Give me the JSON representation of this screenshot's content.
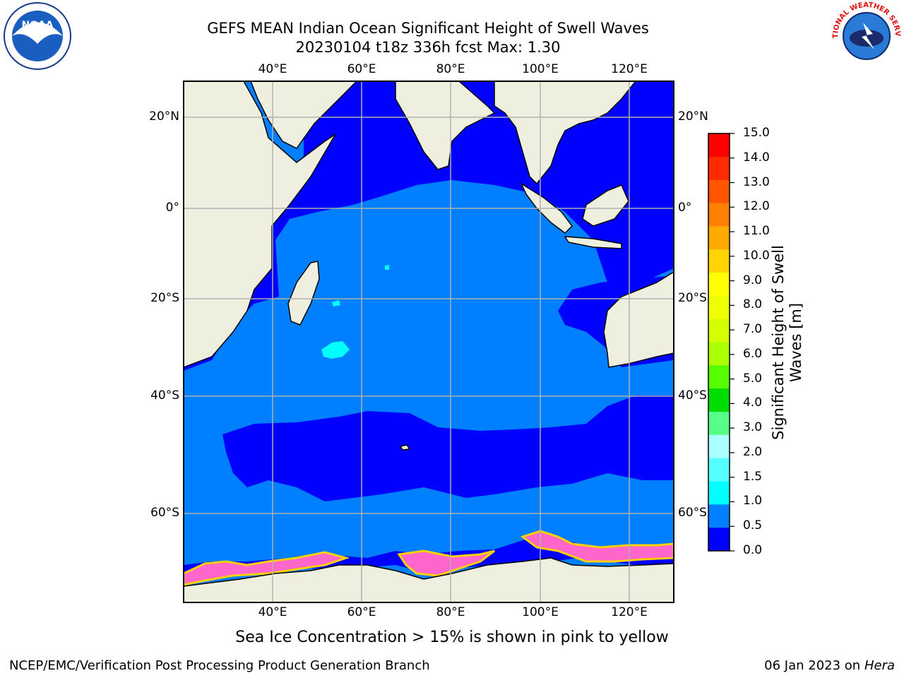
{
  "title": {
    "line1": "GEFS MEAN Indian Ocean Significant Height of Swell Waves",
    "line2": "20230104 t18z 336h fcst   Max: 1.30"
  },
  "map": {
    "lon_labels": [
      "40°E",
      "60°E",
      "80°E",
      "100°E",
      "120°E"
    ],
    "lat_labels": [
      "20°N",
      "0°",
      "20°S",
      "40°S",
      "60°S"
    ],
    "colors": {
      "land": "#efefdf",
      "swell_0_0p5": "#0000ff",
      "swell_0p5_1": "#0080ff",
      "swell_1_1p5": "#00ffff",
      "sea_ice": "#ff66cc",
      "sea_ice_edge": "#ffd000",
      "grid": "#b0b0b0"
    }
  },
  "colorbar": {
    "label_line1": "Significant Height of Swell",
    "label_line2": "Waves [m]",
    "ticks": [
      "15.0",
      "14.0",
      "13.0",
      "12.0",
      "11.0",
      "10.0",
      "9.0",
      "8.0",
      "7.0",
      "6.0",
      "5.0",
      "4.0",
      "3.0",
      "2.0",
      "1.5",
      "1.0",
      "0.5",
      "0.0"
    ],
    "colors": [
      "#ff0000",
      "#ff2a00",
      "#ff5500",
      "#ff8000",
      "#ffaa00",
      "#ffd400",
      "#ffff00",
      "#eeff00",
      "#d4ff00",
      "#aaff00",
      "#55ff00",
      "#00dd00",
      "#55ff88",
      "#aaffff",
      "#55ffff",
      "#00ffff",
      "#0080ff",
      "#0000ff"
    ]
  },
  "note": "Sea Ice Concentration > 15% is shown in pink to yellow",
  "footer": {
    "left": "NCEP/EMC/Verification Post Processing Product Generation Branch",
    "right_date": "06 Jan 2023 on ",
    "right_machine": "Hera"
  },
  "logos": {
    "noaa_text": "NOAA",
    "nws_text": "NATIONAL WEATHER SERVICE"
  }
}
